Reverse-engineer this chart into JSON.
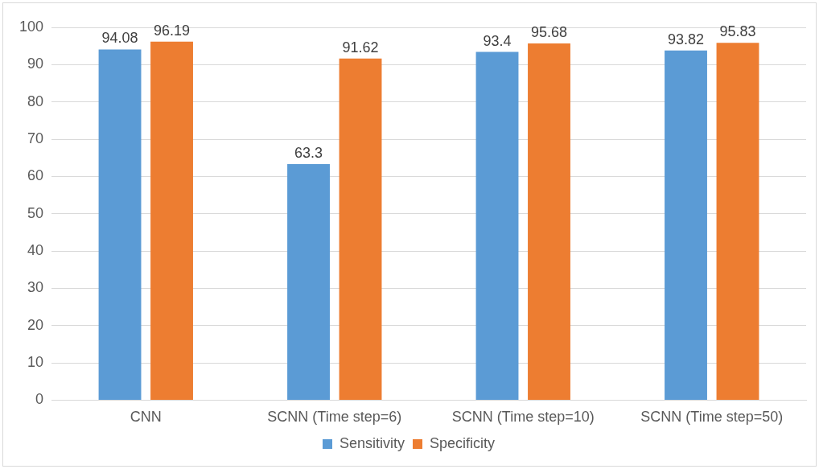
{
  "chart_data": {
    "type": "bar",
    "categories": [
      "CNN",
      "SCNN (Time step=6)",
      "SCNN (Time step=10)",
      "SCNN (Time step=50)"
    ],
    "series": [
      {
        "name": "Sensitivity",
        "color": "#5b9bd5",
        "values": [
          94.08,
          63.3,
          93.4,
          93.82
        ]
      },
      {
        "name": "Specificity",
        "color": "#ed7d31",
        "values": [
          96.19,
          91.62,
          95.68,
          95.83
        ]
      }
    ],
    "ylim": [
      0,
      100
    ],
    "yticks": [
      0,
      10,
      20,
      30,
      40,
      50,
      60,
      70,
      80,
      90,
      100
    ],
    "grid": "y",
    "legend": "bottom",
    "data_labels": true
  }
}
